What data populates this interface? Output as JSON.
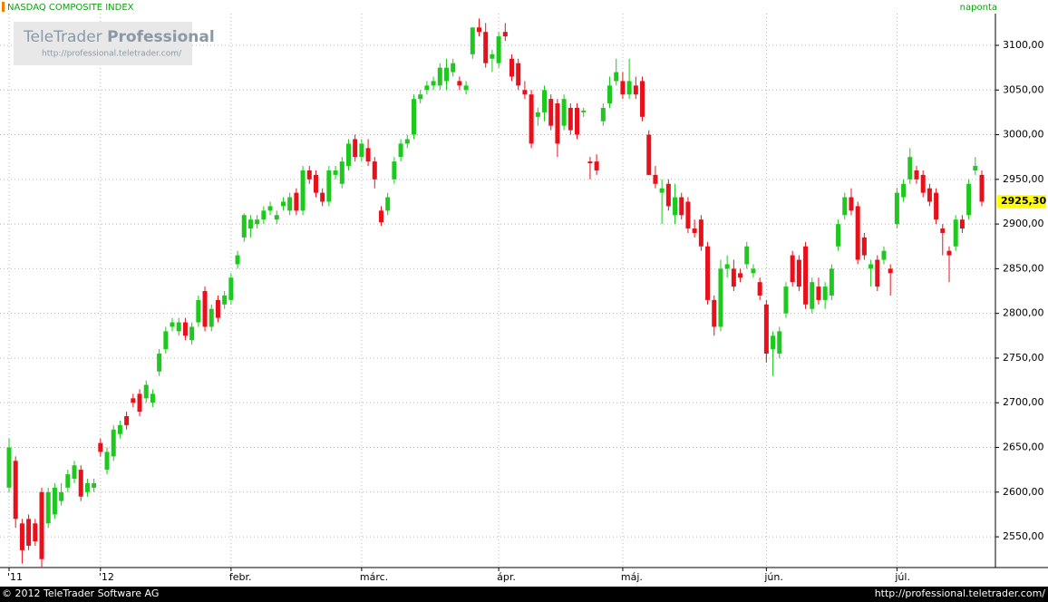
{
  "chart_data": {
    "type": "candlestick",
    "title": "NASDAQ COMPOSITE INDEX",
    "interval": "naponta",
    "logo_title": "TeleTrader",
    "logo_title_bold": "Professional",
    "logo_url": "http://professional.teletrader.com/",
    "copyright": "© 2012 TeleTrader Software AG",
    "footer_url": "http://professional.teletrader.com/",
    "up_color": "#1ec81e",
    "down_color": "#e8101a",
    "grid": true,
    "last_price": {
      "value": 2925.3,
      "label": "2925,30"
    },
    "ylim": [
      2516.6,
      3135.5
    ],
    "yticks": [
      {
        "value": 2550,
        "label": "2550,00"
      },
      {
        "value": 2600,
        "label": "2600,00"
      },
      {
        "value": 2650,
        "label": "2650,00"
      },
      {
        "value": 2700,
        "label": "2700,00"
      },
      {
        "value": 2750,
        "label": "2750,00"
      },
      {
        "value": 2800,
        "label": "2800,00"
      },
      {
        "value": 2850,
        "label": "2850,00"
      },
      {
        "value": 2900,
        "label": "2900,00"
      },
      {
        "value": 2950,
        "label": "2950,00"
      },
      {
        "value": 3000,
        "label": "3000,00"
      },
      {
        "value": 3050,
        "label": "3050,00"
      },
      {
        "value": 3100,
        "label": "3100,00"
      }
    ],
    "categories": [
      "'11",
      null,
      null,
      null,
      null,
      null,
      null,
      null,
      null,
      null,
      null,
      null,
      null,
      null,
      "'12",
      null,
      null,
      null,
      null,
      null,
      null,
      null,
      null,
      null,
      null,
      null,
      null,
      null,
      null,
      null,
      null,
      null,
      null,
      null,
      "febr.",
      null,
      null,
      null,
      null,
      null,
      null,
      null,
      null,
      null,
      null,
      null,
      null,
      null,
      null,
      null,
      null,
      null,
      null,
      null,
      "márc.",
      null,
      null,
      null,
      null,
      null,
      null,
      null,
      null,
      null,
      null,
      null,
      null,
      null,
      null,
      null,
      null,
      null,
      null,
      null,
      null,
      "ápr.",
      null,
      null,
      null,
      null,
      null,
      null,
      null,
      null,
      null,
      null,
      null,
      null,
      null,
      null,
      null,
      null,
      null,
      null,
      "máj.",
      null,
      null,
      null,
      null,
      null,
      null,
      null,
      null,
      null,
      null,
      null,
      null,
      null,
      null,
      null,
      null,
      null,
      null,
      null,
      null,
      null,
      "jún.",
      null,
      null,
      null,
      null,
      null,
      null,
      null,
      null,
      null,
      null,
      null,
      null,
      null,
      null,
      null,
      null,
      null,
      null,
      null,
      "júl.",
      null,
      null,
      null,
      null,
      null,
      null,
      null,
      null,
      null,
      null,
      null,
      null,
      null
    ],
    "ohlc": [
      [
        2605,
        2660,
        2600,
        2650
      ],
      [
        2635,
        2640,
        2560,
        2570
      ],
      [
        2565,
        2570,
        2520,
        2535
      ],
      [
        2570,
        2575,
        2535,
        2540
      ],
      [
        2565,
        2570,
        2540,
        2545
      ],
      [
        2600,
        2605,
        2515,
        2525
      ],
      [
        2565,
        2605,
        2560,
        2600
      ],
      [
        2575,
        2610,
        2570,
        2605
      ],
      [
        2590,
        2610,
        2585,
        2600
      ],
      [
        2605,
        2625,
        2600,
        2620
      ],
      [
        2615,
        2635,
        2610,
        2630
      ],
      [
        2625,
        2630,
        2590,
        2595
      ],
      [
        2600,
        2615,
        2595,
        2610
      ],
      [
        2605,
        2615,
        2600,
        2610
      ],
      [
        2655,
        2660,
        2640,
        2645
      ],
      [
        2625,
        2650,
        2620,
        2645
      ],
      [
        2640,
        2675,
        2635,
        2670
      ],
      [
        2665,
        2680,
        2660,
        2675
      ],
      [
        2685,
        2690,
        2670,
        2675
      ],
      [
        2705,
        2710,
        2695,
        2700
      ],
      [
        2710,
        2715,
        2685,
        2690
      ],
      [
        2705,
        2725,
        2700,
        2720
      ],
      [
        2700,
        2715,
        2695,
        2710
      ],
      [
        2735,
        2760,
        2730,
        2755
      ],
      [
        2760,
        2785,
        2755,
        2780
      ],
      [
        2785,
        2795,
        2780,
        2790
      ],
      [
        2780,
        2795,
        2775,
        2790
      ],
      [
        2790,
        2795,
        2770,
        2775
      ],
      [
        2770,
        2790,
        2765,
        2785
      ],
      [
        2790,
        2820,
        2785,
        2815
      ],
      [
        2825,
        2830,
        2780,
        2785
      ],
      [
        2785,
        2810,
        2780,
        2805
      ],
      [
        2815,
        2820,
        2790,
        2795
      ],
      [
        2810,
        2825,
        2805,
        2820
      ],
      [
        2815,
        2845,
        2810,
        2840
      ],
      [
        2855,
        2870,
        2850,
        2865
      ],
      [
        2885,
        2912,
        2880,
        2910
      ],
      [
        2895,
        2910,
        2885,
        2905
      ],
      [
        2900,
        2910,
        2895,
        2905
      ],
      [
        2905,
        2920,
        2900,
        2915
      ],
      [
        2915,
        2925,
        2910,
        2920
      ],
      [
        2905,
        2915,
        2900,
        2910
      ],
      [
        2920,
        2930,
        2915,
        2925
      ],
      [
        2915,
        2935,
        2910,
        2930
      ],
      [
        2935,
        2940,
        2910,
        2915
      ],
      [
        2915,
        2965,
        2910,
        2960
      ],
      [
        2960,
        2965,
        2945,
        2950
      ],
      [
        2955,
        2960,
        2930,
        2935
      ],
      [
        2935,
        2940,
        2920,
        2925
      ],
      [
        2925,
        2965,
        2920,
        2960
      ],
      [
        2955,
        2965,
        2950,
        2960
      ],
      [
        2945,
        2975,
        2940,
        2970
      ],
      [
        2965,
        2995,
        2960,
        2990
      ],
      [
        2995,
        3000,
        2970,
        2975
      ],
      [
        2975,
        2995,
        2970,
        2990
      ],
      [
        2985,
        2995,
        2965,
        2970
      ],
      [
        2970,
        2975,
        2940,
        2950
      ],
      [
        2915,
        2920,
        2898,
        2902
      ],
      [
        2915,
        2935,
        2910,
        2930
      ],
      [
        2950,
        2975,
        2945,
        2970
      ],
      [
        2975,
        2995,
        2970,
        2990
      ],
      [
        2990,
        3000,
        2985,
        2995
      ],
      [
        3000,
        3045,
        2995,
        3040
      ],
      [
        3040,
        3050,
        3035,
        3045
      ],
      [
        3050,
        3060,
        3045,
        3055
      ],
      [
        3055,
        3065,
        3050,
        3060
      ],
      [
        3055,
        3080,
        3050,
        3075
      ],
      [
        3060,
        3085,
        3050,
        3075
      ],
      [
        3070,
        3085,
        3065,
        3080
      ],
      [
        3060,
        3065,
        3050,
        3055
      ],
      [
        3050,
        3060,
        3045,
        3055
      ],
      [
        3090,
        3120,
        3085,
        3120
      ],
      [
        3120,
        3130,
        3110,
        3115
      ],
      [
        3115,
        3125,
        3075,
        3080
      ],
      [
        3085,
        3095,
        3070,
        3090
      ],
      [
        3080,
        3115,
        3075,
        3110
      ],
      [
        3115,
        3125,
        3105,
        3110
      ],
      [
        3085,
        3090,
        3060,
        3065
      ],
      [
        3080,
        3085,
        3050,
        3055
      ],
      [
        3050,
        3060,
        3040,
        3045
      ],
      [
        3045,
        3050,
        2985,
        2990
      ],
      [
        3020,
        3030,
        3010,
        3025
      ],
      [
        3025,
        3055,
        3015,
        3050
      ],
      [
        3040,
        3045,
        3005,
        3010
      ],
      [
        3035,
        3040,
        2975,
        2990
      ],
      [
        3010,
        3045,
        3005,
        3040
      ],
      [
        3030,
        3035,
        3000,
        3005
      ],
      [
        3030,
        3035,
        2995,
        3000
      ],
      [
        3025,
        3030,
        3020,
        3027
      ],
      [
        2970,
        2975,
        2950,
        2968
      ],
      [
        2970,
        2978,
        2955,
        2960
      ],
      [
        3015,
        3035,
        3010,
        3030
      ],
      [
        3035,
        3065,
        3030,
        3055
      ],
      [
        3060,
        3085,
        3055,
        3070
      ],
      [
        3060,
        3070,
        3040,
        3045
      ],
      [
        3045,
        3085,
        3040,
        3060
      ],
      [
        3055,
        3065,
        3040,
        3045
      ],
      [
        3060,
        3065,
        3015,
        3020
      ],
      [
        3000,
        3005,
        2955,
        2955
      ],
      [
        2955,
        2965,
        2940,
        2945
      ],
      [
        2935,
        2950,
        2900,
        2940
      ],
      [
        2945,
        2950,
        2915,
        2920
      ],
      [
        2910,
        2945,
        2900,
        2930
      ],
      [
        2930,
        2935,
        2905,
        2910
      ],
      [
        2925,
        2930,
        2890,
        2895
      ],
      [
        2895,
        2905,
        2885,
        2890
      ],
      [
        2905,
        2910,
        2870,
        2875
      ],
      [
        2875,
        2880,
        2810,
        2815
      ],
      [
        2815,
        2820,
        2775,
        2785
      ],
      [
        2785,
        2860,
        2780,
        2850
      ],
      [
        2850,
        2865,
        2840,
        2855
      ],
      [
        2850,
        2860,
        2825,
        2830
      ],
      [
        2845,
        2850,
        2835,
        2840
      ],
      [
        2855,
        2880,
        2850,
        2875
      ],
      [
        2845,
        2855,
        2840,
        2850
      ],
      [
        2835,
        2840,
        2815,
        2820
      ],
      [
        2810,
        2815,
        2745,
        2755
      ],
      [
        2760,
        2780,
        2730,
        2775
      ],
      [
        2755,
        2785,
        2750,
        2780
      ],
      [
        2800,
        2835,
        2795,
        2830
      ],
      [
        2865,
        2870,
        2830,
        2835
      ],
      [
        2860,
        2865,
        2825,
        2830
      ],
      [
        2875,
        2880,
        2805,
        2810
      ],
      [
        2805,
        2840,
        2800,
        2835
      ],
      [
        2830,
        2840,
        2810,
        2815
      ],
      [
        2815,
        2835,
        2805,
        2830
      ],
      [
        2820,
        2855,
        2815,
        2850
      ],
      [
        2875,
        2905,
        2870,
        2900
      ],
      [
        2910,
        2935,
        2905,
        2930
      ],
      [
        2930,
        2940,
        2910,
        2915
      ],
      [
        2920,
        2925,
        2855,
        2860
      ],
      [
        2885,
        2890,
        2860,
        2865
      ],
      [
        2850,
        2860,
        2830,
        2855
      ],
      [
        2860,
        2865,
        2825,
        2830
      ],
      [
        2860,
        2875,
        2855,
        2870
      ],
      [
        2850,
        2855,
        2820,
        2845
      ],
      [
        2900,
        2940,
        2895,
        2935
      ],
      [
        2930,
        2950,
        2925,
        2945
      ],
      [
        2950,
        2985,
        2945,
        2975
      ],
      [
        2960,
        2965,
        2945,
        2950
      ],
      [
        2955,
        2960,
        2930,
        2935
      ],
      [
        2940,
        2945,
        2920,
        2925
      ],
      [
        2935,
        2940,
        2900,
        2905
      ],
      [
        2895,
        2900,
        2865,
        2890
      ],
      [
        2870,
        2875,
        2835,
        2865
      ],
      [
        2875,
        2910,
        2870,
        2905
      ],
      [
        2905,
        2910,
        2890,
        2895
      ],
      [
        2910,
        2950,
        2905,
        2945
      ],
      [
        2960,
        2975,
        2955,
        2965
      ],
      [
        2955,
        2960,
        2920,
        2925
      ]
    ]
  }
}
